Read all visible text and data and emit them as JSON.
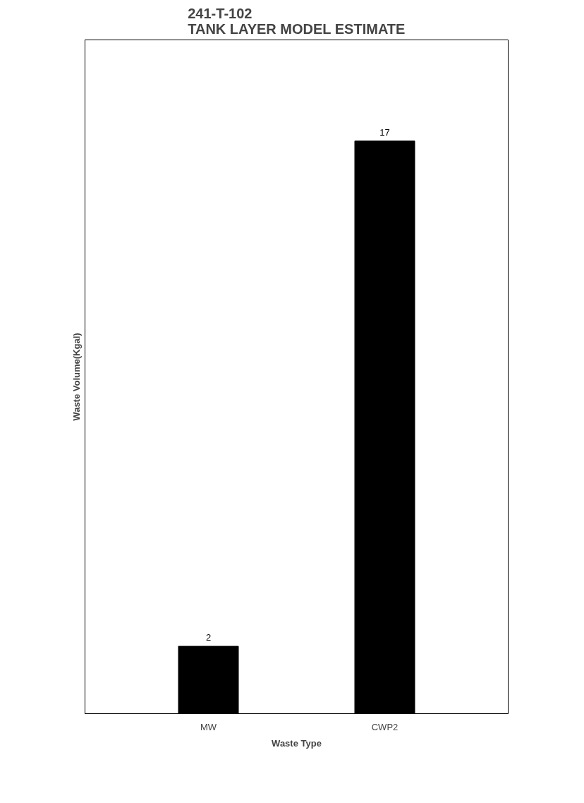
{
  "chart_data": {
    "type": "bar",
    "title": "241-T-102\nTANK LAYER MODEL ESTIMATE",
    "xlabel": "Waste Type",
    "ylabel": "Waste Volume(Kgal)",
    "categories": [
      "MW",
      "CWP2"
    ],
    "series": [
      {
        "color": "#000000",
        "values": [
          2,
          17
        ]
      }
    ],
    "ylim": [
      0,
      20
    ],
    "data_labels": true,
    "tick_labels": "x",
    "grid": false
  }
}
